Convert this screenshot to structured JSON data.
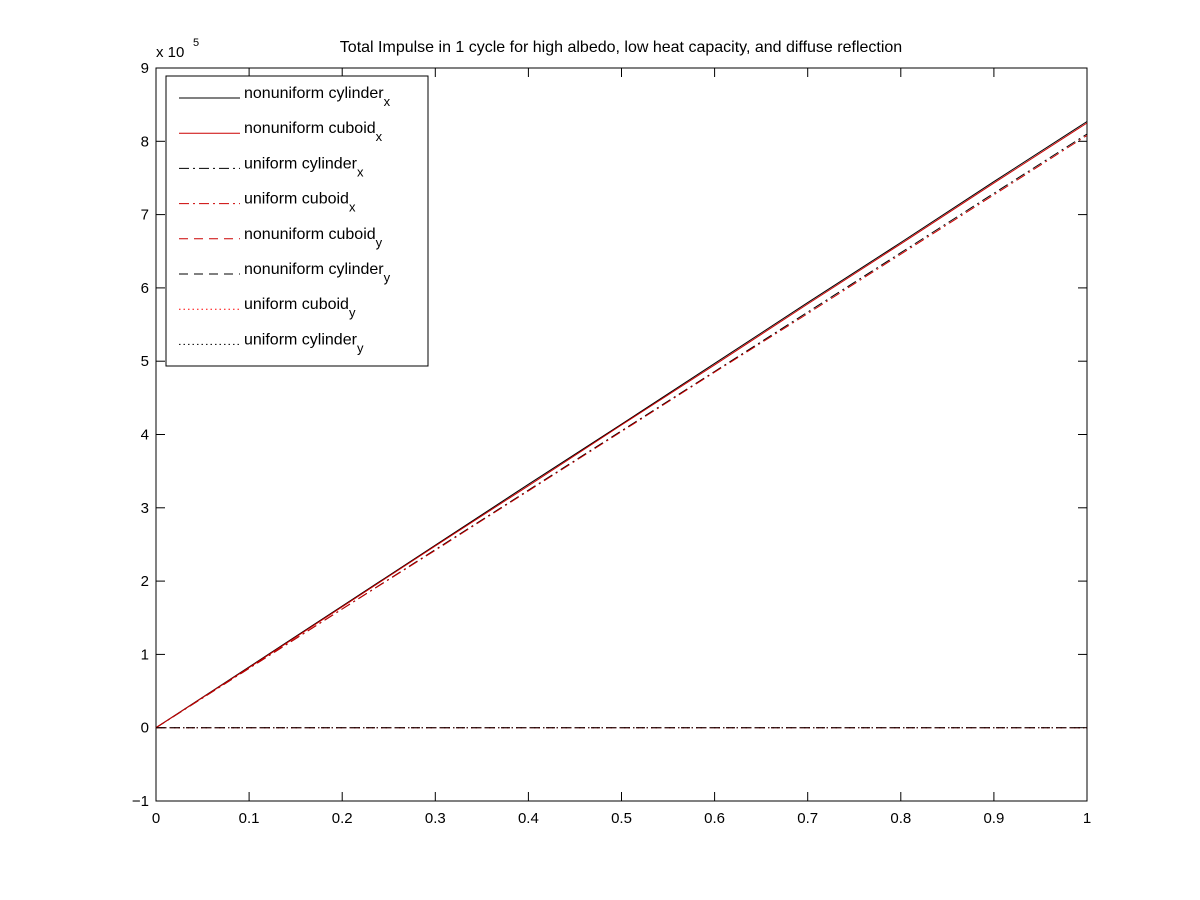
{
  "chart_data": {
    "type": "line",
    "title": "Total Impulse in 1 cycle for high albedo, low  heat capacity, and diffuse  reflection",
    "xlabel": "",
    "ylabel": "",
    "xlim": [
      0,
      1
    ],
    "ylim": [
      -1,
      9
    ],
    "y_multiplier_label": {
      "base": "x 10",
      "exponent": "5"
    },
    "x_ticks": [
      {
        "value": 0,
        "label": "0"
      },
      {
        "value": 0.1,
        "label": "0.1"
      },
      {
        "value": 0.2,
        "label": "0.2"
      },
      {
        "value": 0.3,
        "label": "0.3"
      },
      {
        "value": 0.4,
        "label": "0.4"
      },
      {
        "value": 0.5,
        "label": "0.5"
      },
      {
        "value": 0.6,
        "label": "0.6"
      },
      {
        "value": 0.7,
        "label": "0.7"
      },
      {
        "value": 0.8,
        "label": "0.8"
      },
      {
        "value": 0.9,
        "label": "0.9"
      },
      {
        "value": 1,
        "label": "1"
      }
    ],
    "y_ticks": [
      {
        "value": -1,
        "label": "−1"
      },
      {
        "value": 0,
        "label": "0"
      },
      {
        "value": 1,
        "label": "1"
      },
      {
        "value": 2,
        "label": "2"
      },
      {
        "value": 3,
        "label": "3"
      },
      {
        "value": 4,
        "label": "4"
      },
      {
        "value": 5,
        "label": "5"
      },
      {
        "value": 6,
        "label": "6"
      },
      {
        "value": 7,
        "label": "7"
      },
      {
        "value": 8,
        "label": "8"
      },
      {
        "value": 9,
        "label": "9"
      }
    ],
    "grid": false,
    "legend_position": "top-left",
    "series": [
      {
        "name": "nonuniform cylinder",
        "subscript": "x",
        "color": "#000000",
        "dash": "solid",
        "x": [
          0,
          0.1,
          0.2,
          0.3,
          0.4,
          0.5,
          0.6,
          0.7,
          0.8,
          0.9,
          1.0
        ],
        "y": [
          0,
          0.83,
          1.66,
          2.49,
          3.32,
          4.14,
          4.97,
          5.8,
          6.62,
          7.45,
          8.27
        ]
      },
      {
        "name": "nonuniform cuboid",
        "subscript": "x",
        "color": "#cc0000",
        "dash": "solid",
        "x": [
          0,
          0.1,
          0.2,
          0.3,
          0.4,
          0.5,
          0.6,
          0.7,
          0.8,
          0.9,
          1.0
        ],
        "y": [
          0,
          0.82,
          1.65,
          2.48,
          3.3,
          4.13,
          4.95,
          5.78,
          6.6,
          7.43,
          8.25
        ]
      },
      {
        "name": "uniform cylinder",
        "subscript": "x",
        "color": "#000000",
        "dash": "dashdot",
        "x": [
          0,
          0.1,
          0.2,
          0.3,
          0.4,
          0.5,
          0.6,
          0.7,
          0.8,
          0.9,
          1.0
        ],
        "y": [
          0,
          0.81,
          1.62,
          2.43,
          3.24,
          4.05,
          4.86,
          5.67,
          6.48,
          7.29,
          8.1
        ]
      },
      {
        "name": "uniform cuboid",
        "subscript": "x",
        "color": "#cc0000",
        "dash": "dashdot",
        "x": [
          0,
          0.1,
          0.2,
          0.3,
          0.4,
          0.5,
          0.6,
          0.7,
          0.8,
          0.9,
          1.0
        ],
        "y": [
          0,
          0.81,
          1.62,
          2.42,
          3.23,
          4.04,
          4.85,
          5.65,
          6.46,
          7.27,
          8.08
        ]
      },
      {
        "name": "nonuniform cuboid",
        "subscript": "y",
        "color": "#cc0000",
        "dash": "dashed",
        "x": [
          0,
          1.0
        ],
        "y": [
          0,
          0
        ]
      },
      {
        "name": "nonuniform cylinder",
        "subscript": "y",
        "color": "#000000",
        "dash": "dashed",
        "x": [
          0,
          1.0
        ],
        "y": [
          0,
          0
        ]
      },
      {
        "name": "uniform cuboid",
        "subscript": "y",
        "color": "#ff0000",
        "dash": "dotted",
        "x": [
          0,
          1.0
        ],
        "y": [
          0,
          0
        ]
      },
      {
        "name": "uniform cylinder",
        "subscript": "y",
        "color": "#000000",
        "dash": "dotted",
        "x": [
          0,
          1.0
        ],
        "y": [
          0,
          0
        ]
      }
    ]
  }
}
